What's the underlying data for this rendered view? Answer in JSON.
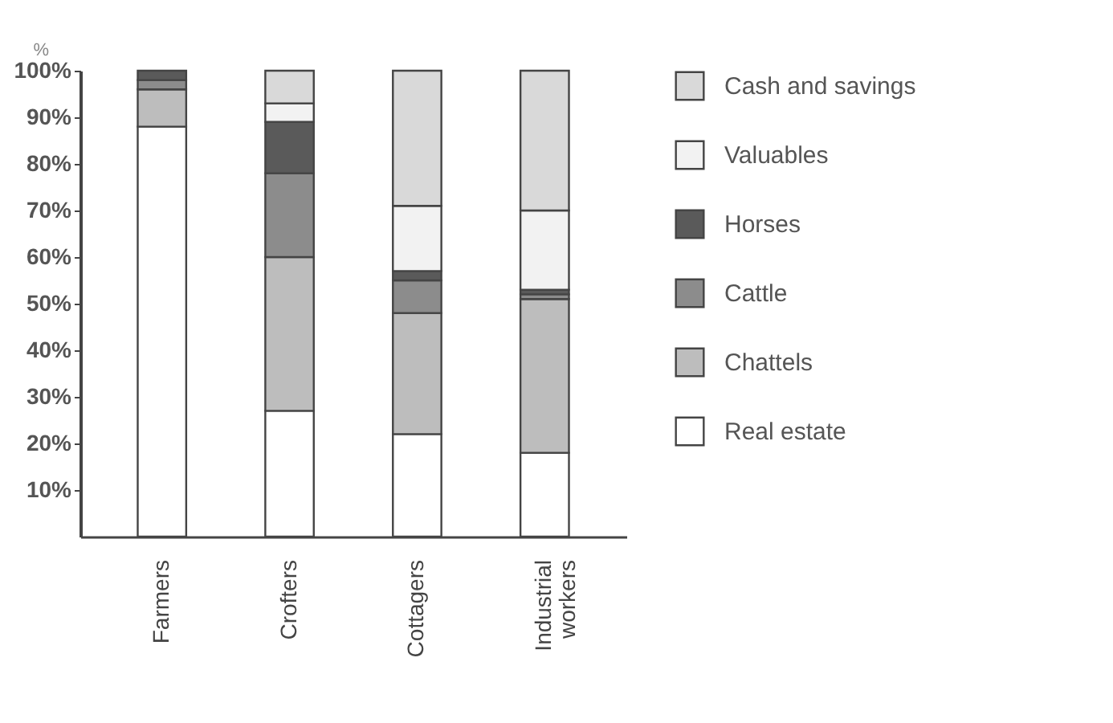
{
  "chart_data": {
    "type": "bar",
    "stacked": true,
    "ylabel": "%",
    "categories": [
      "Farmers",
      "Crofters",
      "Cottagers",
      "Industrial workers"
    ],
    "series": [
      {
        "name": "Real estate",
        "color": "#ffffff",
        "values": [
          88,
          27,
          22,
          18
        ]
      },
      {
        "name": "Chattels",
        "color": "#bdbdbd",
        "values": [
          8,
          33,
          26,
          33
        ]
      },
      {
        "name": "Cattle",
        "color": "#8c8c8c",
        "values": [
          2,
          18,
          7,
          1
        ]
      },
      {
        "name": "Horses",
        "color": "#5a5a5a",
        "values": [
          2,
          11,
          2,
          1
        ]
      },
      {
        "name": "Valuables",
        "color": "#f2f2f2",
        "values": [
          0,
          4,
          14,
          17
        ]
      },
      {
        "name": "Cash and savings",
        "color": "#d9d9d9",
        "values": [
          0,
          7,
          29,
          30
        ]
      }
    ],
    "ylim": [
      0,
      100
    ],
    "yticks": [
      {
        "value": 10,
        "label": "10%"
      },
      {
        "value": 20,
        "label": "20%"
      },
      {
        "value": 30,
        "label": "30%"
      },
      {
        "value": 40,
        "label": "40%"
      },
      {
        "value": 50,
        "label": "50%"
      },
      {
        "value": 60,
        "label": "60%"
      },
      {
        "value": 70,
        "label": "70%"
      },
      {
        "value": 80,
        "label": "80%"
      },
      {
        "value": 90,
        "label": "90%"
      },
      {
        "value": 100,
        "label": "100%"
      }
    ],
    "legend": "right"
  }
}
